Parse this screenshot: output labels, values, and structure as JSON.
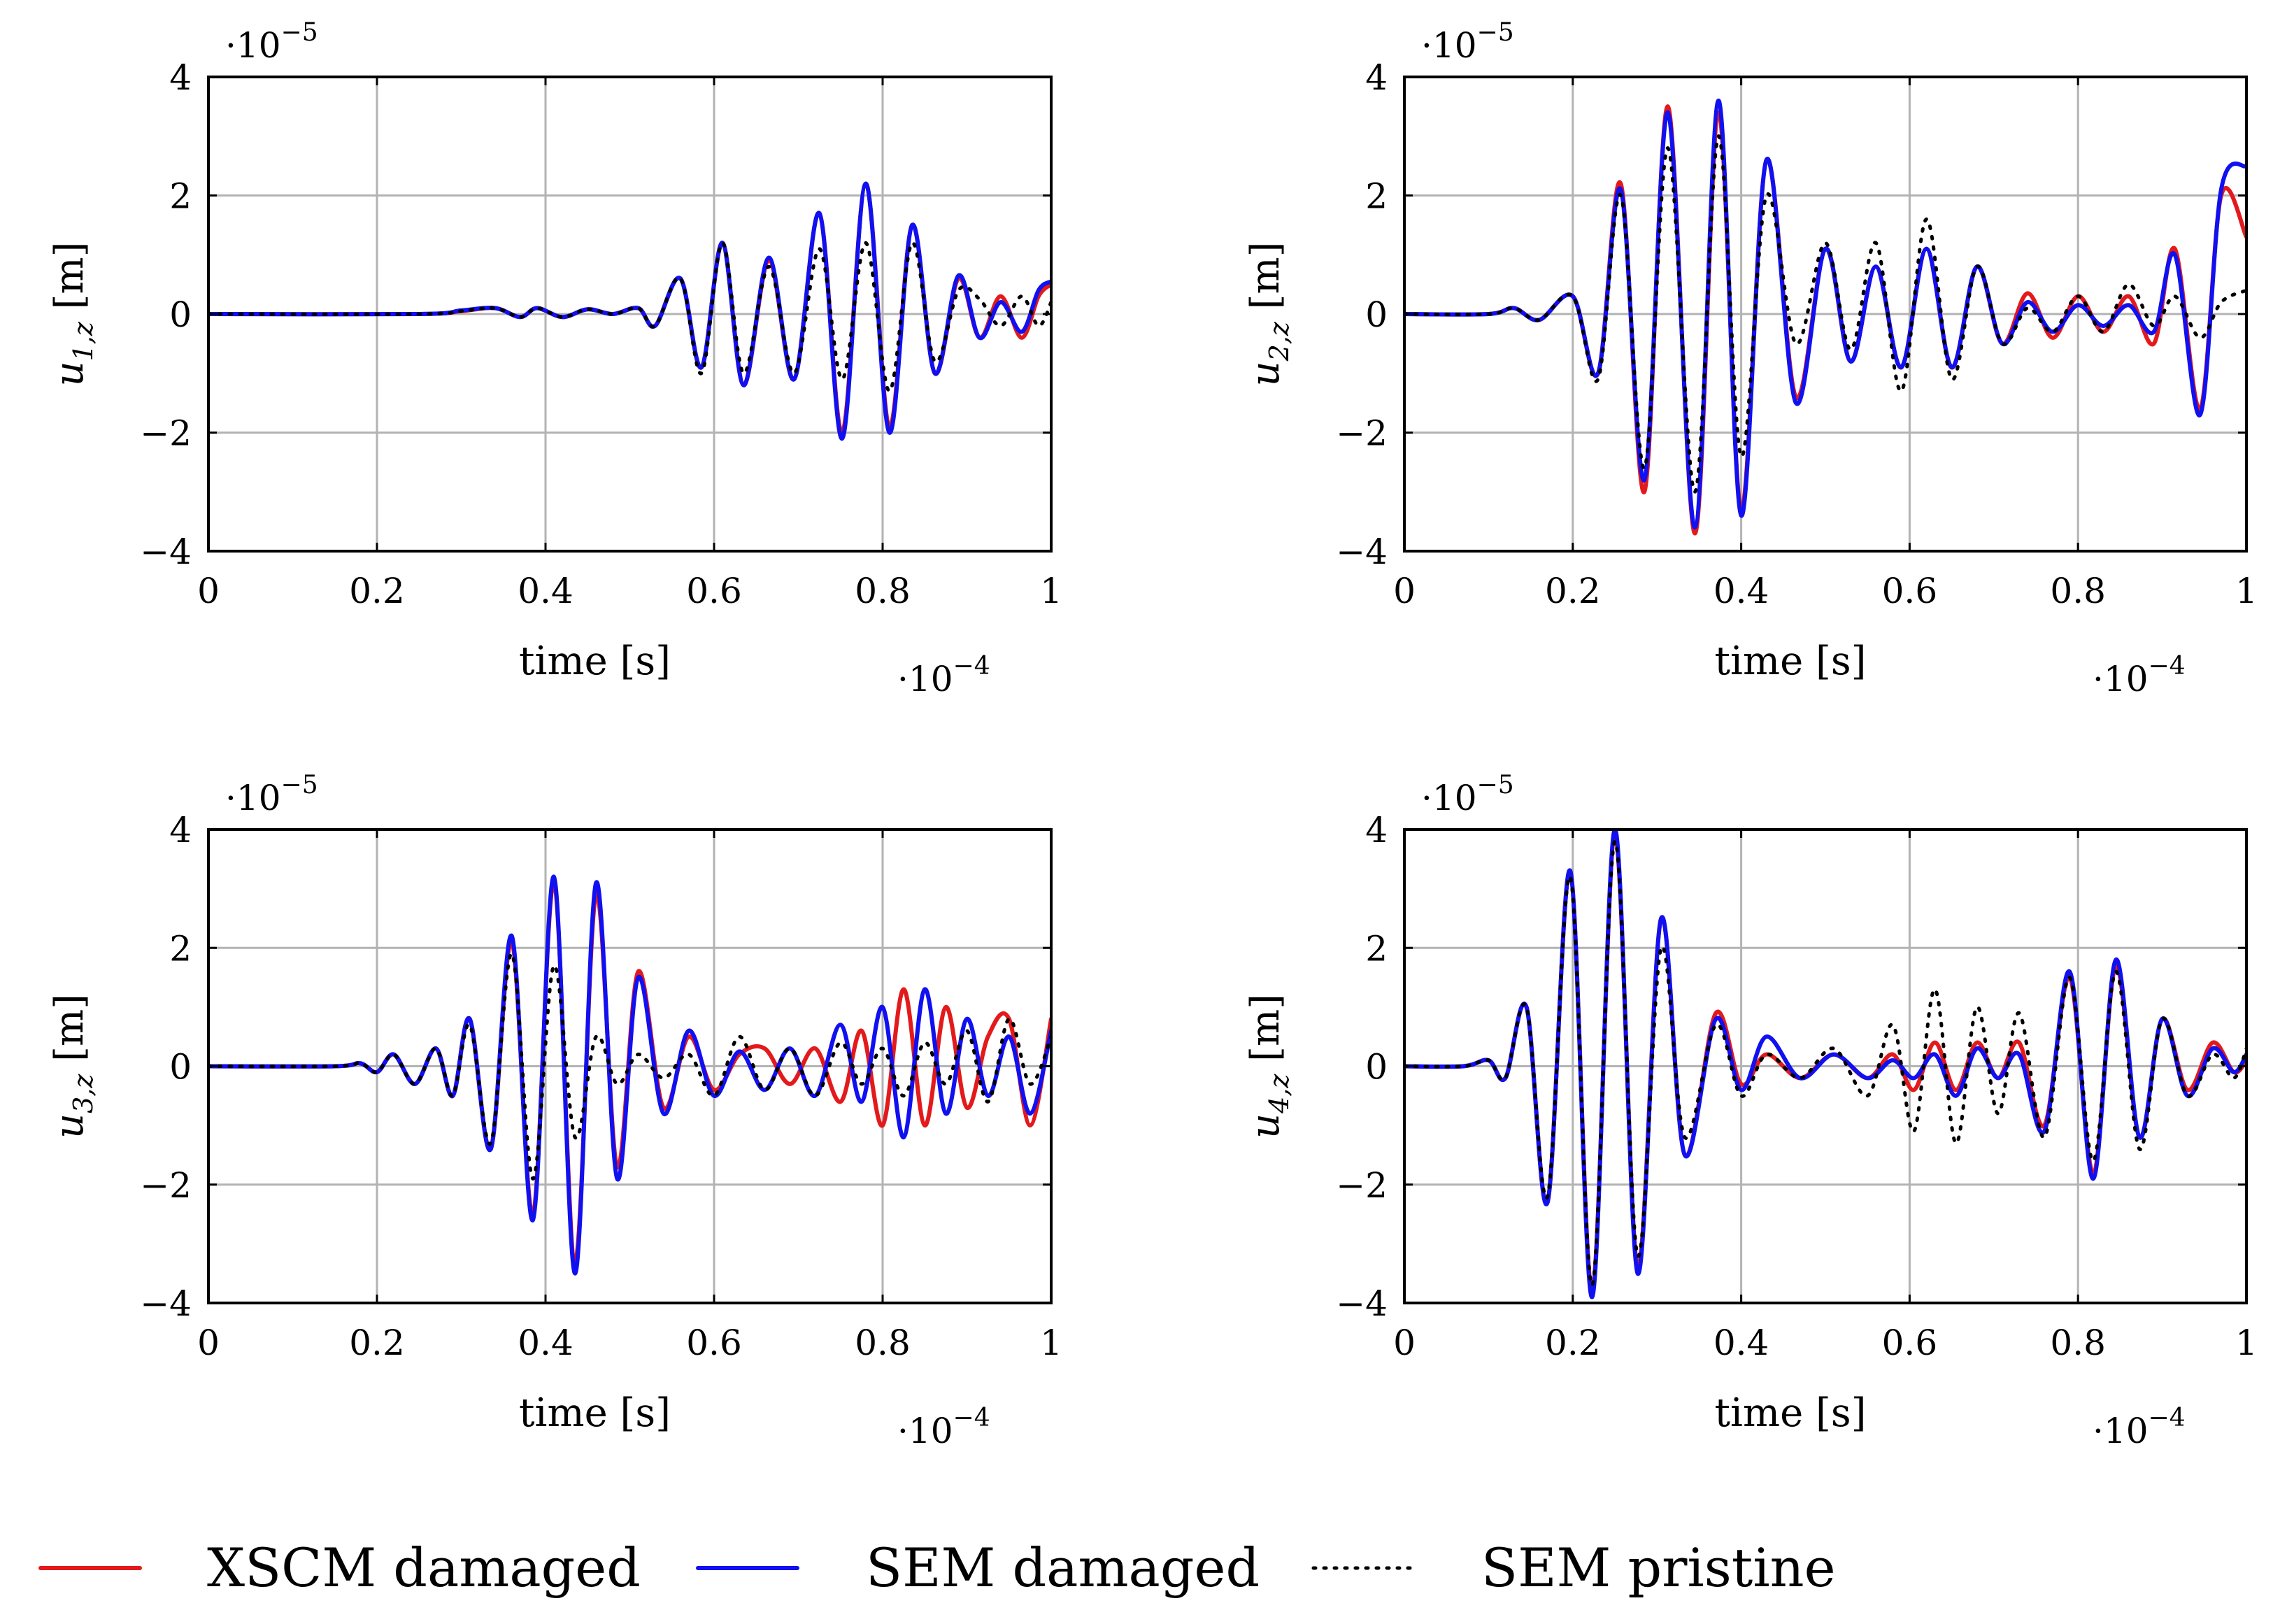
{
  "legend": [
    {
      "key": "xscm_damaged",
      "label": "XSCM damaged",
      "color": "#e31a1c",
      "style": "solid"
    },
    {
      "key": "sem_damaged",
      "label": "SEM damaged",
      "color": "#1010f0",
      "style": "solid"
    },
    {
      "key": "sem_pristine",
      "label": "SEM pristine",
      "color": "#000000",
      "style": "dotted"
    }
  ],
  "chart_data": [
    {
      "type": "line",
      "id": "u1",
      "ylabel": "u",
      "ylabel_sub": "1,z",
      "ylabel_unit": " [m]",
      "xlabel": "time [s]",
      "x_multiplier": "·10",
      "x_multiplier_exp": "−4",
      "y_multiplier": "·10",
      "y_multiplier_exp": "−5",
      "xlim": [
        0,
        1
      ],
      "ylim": [
        -4,
        4
      ],
      "xticks": [
        0,
        0.2,
        0.4,
        0.6,
        0.8,
        1
      ],
      "xtick_labels": [
        "0",
        "0.2",
        "0.4",
        "0.6",
        "0.8",
        "1"
      ],
      "yticks": [
        -4,
        -2,
        0,
        2,
        4
      ],
      "ytick_labels": [
        "−4",
        "−2",
        "0",
        "2",
        "4"
      ],
      "grid": true,
      "x": [
        0,
        0.25,
        0.3,
        0.34,
        0.37,
        0.39,
        0.42,
        0.45,
        0.48,
        0.51,
        0.53,
        0.56,
        0.585,
        0.61,
        0.635,
        0.665,
        0.695,
        0.725,
        0.752,
        0.78,
        0.808,
        0.835,
        0.862,
        0.89,
        0.915,
        0.94,
        0.965,
        0.985,
        1.0
      ],
      "series": [
        {
          "name": "XSCM damaged",
          "values": [
            0,
            0,
            0.05,
            0.1,
            -0.05,
            0.1,
            -0.05,
            0.08,
            0,
            0.1,
            -0.2,
            0.6,
            -0.9,
            1.2,
            -1.2,
            0.9,
            -1.1,
            1.7,
            -2.0,
            2.2,
            -1.9,
            1.5,
            -1.0,
            0.6,
            -0.4,
            0.3,
            -0.4,
            0.3,
            0.5
          ]
        },
        {
          "name": "SEM damaged",
          "values": [
            0,
            0,
            0.06,
            0.1,
            -0.05,
            0.1,
            -0.05,
            0.08,
            0,
            0.1,
            -0.2,
            0.6,
            -0.9,
            1.2,
            -1.2,
            0.95,
            -1.1,
            1.7,
            -2.1,
            2.2,
            -2.0,
            1.5,
            -1.0,
            0.65,
            -0.4,
            0.2,
            -0.3,
            0.4,
            0.55
          ]
        },
        {
          "name": "SEM pristine",
          "values": [
            0,
            0,
            0.05,
            0.1,
            -0.05,
            0.1,
            -0.05,
            0.08,
            0,
            0.1,
            -0.2,
            0.6,
            -1.0,
            1.2,
            -1.0,
            0.8,
            -1.0,
            1.1,
            -1.1,
            1.2,
            -1.3,
            1.2,
            -0.8,
            0.4,
            0.25,
            -0.2,
            0.3,
            -0.2,
            0.2
          ]
        }
      ]
    },
    {
      "type": "line",
      "id": "u2",
      "ylabel": "u",
      "ylabel_sub": "2,z",
      "ylabel_unit": " [m]",
      "xlabel": "time [s]",
      "x_multiplier": "·10",
      "x_multiplier_exp": "−4",
      "y_multiplier": "·10",
      "y_multiplier_exp": "−5",
      "xlim": [
        0,
        1
      ],
      "ylim": [
        -4,
        4
      ],
      "xticks": [
        0,
        0.2,
        0.4,
        0.6,
        0.8,
        1
      ],
      "xtick_labels": [
        "0",
        "0.2",
        "0.4",
        "0.6",
        "0.8",
        "1"
      ],
      "yticks": [
        -4,
        -2,
        0,
        2,
        4
      ],
      "ytick_labels": [
        "−4",
        "−2",
        "0",
        "2",
        "4"
      ],
      "grid": true,
      "x": [
        0,
        0.1,
        0.13,
        0.16,
        0.2,
        0.23,
        0.257,
        0.285,
        0.313,
        0.345,
        0.373,
        0.4,
        0.43,
        0.465,
        0.5,
        0.53,
        0.56,
        0.59,
        0.62,
        0.65,
        0.68,
        0.71,
        0.74,
        0.77,
        0.8,
        0.83,
        0.86,
        0.89,
        0.915,
        0.945,
        0.97,
        1.0
      ],
      "series": [
        {
          "name": "XSCM damaged",
          "values": [
            0,
            0,
            0.1,
            -0.1,
            0.3,
            -1.0,
            2.2,
            -3.0,
            3.5,
            -3.7,
            3.4,
            -3.3,
            2.6,
            -1.4,
            1.1,
            -0.8,
            0.8,
            -0.9,
            1.1,
            -0.9,
            0.8,
            -0.5,
            0.35,
            -0.4,
            0.3,
            -0.3,
            0.3,
            -0.5,
            1.1,
            -1.6,
            2.0,
            1.3
          ]
        },
        {
          "name": "SEM damaged",
          "values": [
            0,
            0,
            0.1,
            -0.1,
            0.3,
            -1.0,
            2.1,
            -2.8,
            3.4,
            -3.6,
            3.6,
            -3.4,
            2.6,
            -1.5,
            1.1,
            -0.8,
            0.8,
            -0.9,
            1.1,
            -0.9,
            0.8,
            -0.5,
            0.2,
            -0.3,
            0.15,
            -0.2,
            0.15,
            -0.3,
            1.0,
            -1.7,
            2.1,
            2.5
          ]
        },
        {
          "name": "SEM pristine",
          "values": [
            0,
            0,
            0.1,
            -0.1,
            0.3,
            -1.1,
            2.0,
            -2.6,
            2.8,
            -3.0,
            3.0,
            -2.4,
            2.0,
            -0.5,
            1.2,
            -0.6,
            1.2,
            -1.3,
            1.6,
            -1.1,
            0.8,
            -0.5,
            0.1,
            -0.3,
            0.3,
            -0.3,
            0.5,
            -0.2,
            0.3,
            -0.4,
            0.2,
            0.4
          ]
        }
      ]
    },
    {
      "type": "line",
      "id": "u3",
      "ylabel": "u",
      "ylabel_sub": "3,z",
      "ylabel_unit": " [m]",
      "xlabel": "time [s]",
      "x_multiplier": "·10",
      "x_multiplier_exp": "−4",
      "y_multiplier": "·10",
      "y_multiplier_exp": "−5",
      "xlim": [
        0,
        1
      ],
      "ylim": [
        -4,
        4
      ],
      "xticks": [
        0,
        0.2,
        0.4,
        0.6,
        0.8,
        1
      ],
      "xtick_labels": [
        "0",
        "0.2",
        "0.4",
        "0.6",
        "0.8",
        "1"
      ],
      "yticks": [
        -4,
        -2,
        0,
        2,
        4
      ],
      "ytick_labels": [
        "−4",
        "−2",
        "0",
        "2",
        "4"
      ],
      "grid": true,
      "x": [
        0,
        0.15,
        0.18,
        0.2,
        0.22,
        0.245,
        0.27,
        0.29,
        0.31,
        0.335,
        0.36,
        0.385,
        0.41,
        0.435,
        0.46,
        0.485,
        0.51,
        0.54,
        0.57,
        0.6,
        0.63,
        0.66,
        0.69,
        0.72,
        0.75,
        0.775,
        0.8,
        0.825,
        0.85,
        0.875,
        0.9,
        0.925,
        0.95,
        0.975,
        1.0
      ],
      "series": [
        {
          "name": "XSCM damaged",
          "values": [
            0,
            0,
            0.05,
            -0.1,
            0.2,
            -0.3,
            0.3,
            -0.5,
            0.8,
            -1.4,
            2.1,
            -2.5,
            3.1,
            -3.3,
            2.9,
            -1.7,
            1.6,
            -0.7,
            0.5,
            -0.4,
            0.2,
            0.3,
            -0.3,
            0.3,
            -0.6,
            0.6,
            -1.0,
            1.3,
            -1.0,
            1.0,
            -0.7,
            0.5,
            0.8,
            -1.0,
            0.8
          ]
        },
        {
          "name": "SEM damaged",
          "values": [
            0,
            0,
            0.05,
            -0.1,
            0.2,
            -0.3,
            0.3,
            -0.5,
            0.8,
            -1.4,
            2.2,
            -2.6,
            3.2,
            -3.5,
            3.1,
            -1.9,
            1.5,
            -0.8,
            0.6,
            -0.5,
            0.25,
            -0.4,
            0.3,
            -0.5,
            0.7,
            -0.6,
            1.0,
            -1.2,
            1.3,
            -0.8,
            0.8,
            -0.5,
            0.5,
            -0.8,
            0.6
          ]
        },
        {
          "name": "SEM pristine",
          "values": [
            0,
            0,
            0.05,
            -0.1,
            0.2,
            -0.3,
            0.3,
            -0.5,
            0.7,
            -1.3,
            1.9,
            -1.9,
            1.7,
            -1.2,
            0.5,
            -0.3,
            0.2,
            -0.2,
            0.2,
            -0.5,
            0.5,
            -0.4,
            0.3,
            -0.5,
            0.4,
            -0.3,
            0.3,
            -0.5,
            0.4,
            -0.3,
            0.6,
            -0.6,
            0.8,
            -0.3,
            0.5
          ]
        }
      ]
    },
    {
      "type": "line",
      "id": "u4",
      "ylabel": "u",
      "ylabel_sub": "4,z",
      "ylabel_unit": " [m]",
      "xlabel": "time [s]",
      "x_multiplier": "·10",
      "x_multiplier_exp": "−4",
      "y_multiplier": "·10",
      "y_multiplier_exp": "−5",
      "xlim": [
        0,
        1
      ],
      "ylim": [
        -4,
        4
      ],
      "xticks": [
        0,
        0.2,
        0.4,
        0.6,
        0.8,
        1
      ],
      "xtick_labels": [
        "0",
        "0.2",
        "0.4",
        "0.6",
        "0.8",
        "1"
      ],
      "yticks": [
        -4,
        -2,
        0,
        2,
        4
      ],
      "ytick_labels": [
        "−4",
        "−2",
        "0",
        "2",
        "4"
      ],
      "grid": true,
      "x": [
        0,
        0.07,
        0.1,
        0.12,
        0.145,
        0.17,
        0.197,
        0.223,
        0.25,
        0.277,
        0.305,
        0.333,
        0.37,
        0.4,
        0.43,
        0.47,
        0.51,
        0.55,
        0.58,
        0.605,
        0.63,
        0.655,
        0.68,
        0.705,
        0.73,
        0.76,
        0.79,
        0.818,
        0.845,
        0.873,
        0.9,
        0.93,
        0.96,
        0.985,
        1.0
      ],
      "series": [
        {
          "name": "XSCM damaged",
          "values": [
            0,
            0,
            0.1,
            -0.2,
            1.0,
            -2.3,
            3.3,
            -3.8,
            3.9,
            -3.4,
            2.5,
            -1.5,
            0.9,
            -0.3,
            0.2,
            -0.2,
            0.2,
            -0.2,
            0.2,
            -0.4,
            0.4,
            -0.4,
            0.4,
            -0.2,
            0.4,
            -1.0,
            1.5,
            -1.8,
            1.7,
            -1.2,
            0.8,
            -0.4,
            0.4,
            -0.1,
            0.1
          ]
        },
        {
          "name": "SEM damaged",
          "values": [
            0,
            0,
            0.1,
            -0.2,
            1.0,
            -2.3,
            3.3,
            -3.9,
            4.0,
            -3.5,
            2.5,
            -1.5,
            0.8,
            -0.4,
            0.5,
            -0.2,
            0.2,
            -0.2,
            0.1,
            -0.2,
            0.2,
            -0.5,
            0.3,
            -0.2,
            0.2,
            -1.1,
            1.6,
            -1.9,
            1.8,
            -1.2,
            0.8,
            -0.5,
            0.3,
            -0.1,
            0.2
          ]
        },
        {
          "name": "SEM pristine",
          "values": [
            0,
            0,
            0.1,
            -0.2,
            1.0,
            -2.2,
            3.2,
            -3.7,
            3.8,
            -3.2,
            2.0,
            -1.2,
            0.7,
            -0.5,
            0.2,
            -0.2,
            0.3,
            -0.5,
            0.7,
            -1.1,
            1.3,
            -1.3,
            1.0,
            -0.8,
            0.9,
            -1.2,
            1.5,
            -1.6,
            1.6,
            -1.4,
            0.8,
            -0.5,
            0.2,
            -0.2,
            0.3
          ]
        }
      ]
    }
  ]
}
